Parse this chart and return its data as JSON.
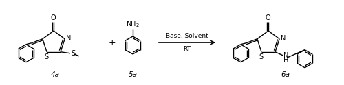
{
  "background_color": "#ffffff",
  "line_color": "#000000",
  "label_4a": "4a",
  "label_5a": "5a",
  "label_6a": "6a",
  "arrow_label_top": "Base, Solvent",
  "arrow_label_bottom": "RT",
  "plus_sign": "+",
  "figsize": [
    5.0,
    1.24
  ],
  "dpi": 100,
  "lw": 1.0
}
